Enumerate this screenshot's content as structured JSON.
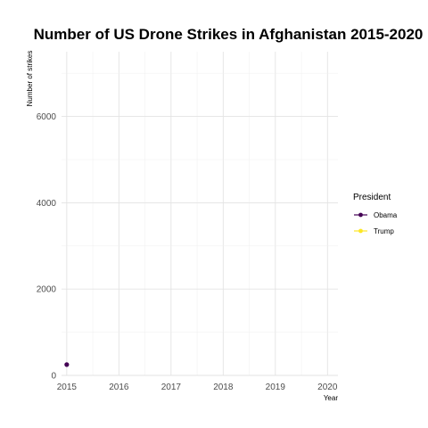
{
  "chart_data": {
    "type": "line",
    "title": "Number of  US Drone Strikes in Afghanistan 2015-2020",
    "xlabel": "Year",
    "ylabel": "Number of strikes",
    "x_ticks": [
      2015,
      2016,
      2017,
      2018,
      2019,
      2020
    ],
    "y_ticks": [
      0,
      2000,
      4000,
      6000
    ],
    "xlim": [
      2014.9,
      2020.2
    ],
    "ylim": [
      0,
      7500
    ],
    "grid": true,
    "legend": {
      "title": "President",
      "placement": "right",
      "entries": [
        {
          "name": "Obama",
          "color": "#440154"
        },
        {
          "name": "Trump",
          "color": "#fde725"
        }
      ]
    },
    "series": [
      {
        "name": "Obama",
        "color": "#440154",
        "points": [
          {
            "x": 2015,
            "y": 250
          }
        ]
      },
      {
        "name": "Trump",
        "color": "#fde725",
        "points": []
      }
    ]
  }
}
